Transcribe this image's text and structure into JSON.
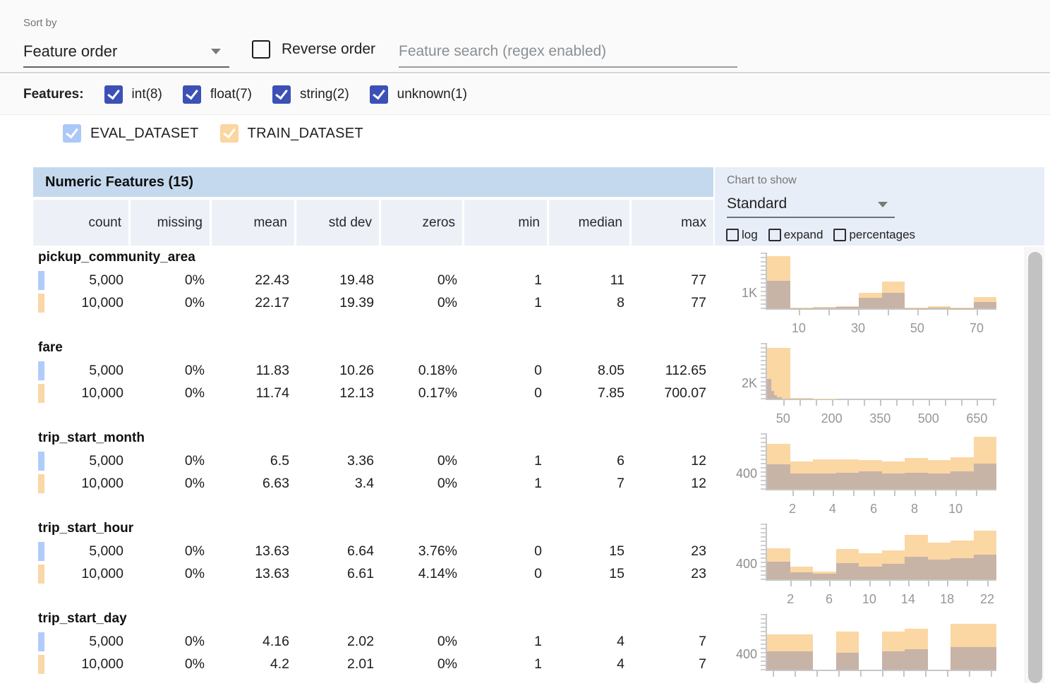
{
  "header": {
    "sort_by_label": "Sort by",
    "sort_value": "Feature order",
    "reverse_label": "Reverse order",
    "search_placeholder": "Feature search (regex enabled)"
  },
  "features_filter": {
    "label": "Features:",
    "checkbox_color": "#3d50b5",
    "items": [
      {
        "label": "int(8)",
        "checked": true
      },
      {
        "label": "float(7)",
        "checked": true
      },
      {
        "label": "string(2)",
        "checked": true
      },
      {
        "label": "unknown(1)",
        "checked": true
      }
    ]
  },
  "datasets": [
    {
      "name": "EVAL_DATASET",
      "checkbox_color": "#abc8f7",
      "chip_color": "#b0ccf8",
      "checked": true
    },
    {
      "name": "TRAIN_DATASET",
      "checkbox_color": "#fbd6a0",
      "chip_color": "#f9d7a6",
      "checked": true
    }
  ],
  "table": {
    "title": "Numeric Features (15)",
    "columns": [
      "count",
      "missing",
      "mean",
      "std dev",
      "zeros",
      "min",
      "median",
      "max"
    ],
    "features": [
      {
        "name": "pickup_community_area",
        "rows": [
          {
            "dataset": "EVAL_DATASET",
            "values": [
              "5,000",
              "0%",
              "22.43",
              "19.48",
              "0%",
              "1",
              "11",
              "77"
            ]
          },
          {
            "dataset": "TRAIN_DATASET",
            "values": [
              "10,000",
              "0%",
              "22.17",
              "19.39",
              "0%",
              "1",
              "8",
              "77"
            ]
          }
        ]
      },
      {
        "name": "fare",
        "rows": [
          {
            "dataset": "EVAL_DATASET",
            "values": [
              "5,000",
              "0%",
              "11.83",
              "10.26",
              "0.18%",
              "0",
              "8.05",
              "112.65"
            ]
          },
          {
            "dataset": "TRAIN_DATASET",
            "values": [
              "10,000",
              "0%",
              "11.74",
              "12.13",
              "0.17%",
              "0",
              "7.85",
              "700.07"
            ]
          }
        ]
      },
      {
        "name": "trip_start_month",
        "rows": [
          {
            "dataset": "EVAL_DATASET",
            "values": [
              "5,000",
              "0%",
              "6.5",
              "3.36",
              "0%",
              "1",
              "6",
              "12"
            ]
          },
          {
            "dataset": "TRAIN_DATASET",
            "values": [
              "10,000",
              "0%",
              "6.63",
              "3.4",
              "0%",
              "1",
              "7",
              "12"
            ]
          }
        ]
      },
      {
        "name": "trip_start_hour",
        "rows": [
          {
            "dataset": "EVAL_DATASET",
            "values": [
              "5,000",
              "0%",
              "13.63",
              "6.64",
              "3.76%",
              "0",
              "15",
              "23"
            ]
          },
          {
            "dataset": "TRAIN_DATASET",
            "values": [
              "10,000",
              "0%",
              "13.63",
              "6.61",
              "4.14%",
              "0",
              "15",
              "23"
            ]
          }
        ]
      },
      {
        "name": "trip_start_day",
        "rows": [
          {
            "dataset": "EVAL_DATASET",
            "values": [
              "5,000",
              "0%",
              "4.16",
              "2.02",
              "0%",
              "1",
              "4",
              "7"
            ]
          },
          {
            "dataset": "TRAIN_DATASET",
            "values": [
              "10,000",
              "0%",
              "4.2",
              "2.01",
              "0%",
              "1",
              "4",
              "7"
            ]
          }
        ]
      }
    ]
  },
  "chart_controls": {
    "label": "Chart to show",
    "selected": "Standard",
    "options": [
      "log",
      "expand",
      "percentages"
    ]
  },
  "colors": {
    "train_bar": "#fbd7a4",
    "eval_overlap": "#c8b3a7",
    "axis": "#c6c6c6",
    "axis_label": "#8d8d8d"
  },
  "chart_data": [
    {
      "type": "histogram",
      "feature": "pickup_community_area",
      "y_axis_label": "1K",
      "x_tick_positions": [
        0.138,
        0.268,
        0.397,
        0.526,
        0.655,
        0.785,
        0.914
      ],
      "x_labels": [
        {
          "pos": 0.138,
          "text": "10"
        },
        {
          "pos": 0.397,
          "text": "30"
        },
        {
          "pos": 0.655,
          "text": "50"
        },
        {
          "pos": 0.914,
          "text": "70"
        }
      ],
      "series": [
        {
          "name": "TRAIN_DATASET",
          "values": [
            0.96,
            0.013,
            0.026,
            0.04,
            0.29,
            0.49,
            0.013,
            0.04,
            0.013,
            0.21
          ]
        },
        {
          "name": "EVAL_DATASET",
          "values": [
            0.51,
            0.005,
            0.013,
            0.026,
            0.19,
            0.29,
            0.005,
            0.013,
            0.005,
            0.12
          ]
        }
      ]
    },
    {
      "type": "histogram",
      "feature": "fare",
      "y_axis_label": "2K",
      "x_tick_positions": [
        0.07,
        0.141,
        0.211,
        0.282,
        0.352,
        0.422,
        0.493,
        0.563,
        0.634,
        0.704,
        0.775,
        0.845,
        0.915,
        0.986
      ],
      "x_labels": [
        {
          "pos": 0.07,
          "text": "50"
        },
        {
          "pos": 0.282,
          "text": "200"
        },
        {
          "pos": 0.493,
          "text": "350"
        },
        {
          "pos": 0.704,
          "text": "500"
        },
        {
          "pos": 0.915,
          "text": "650"
        }
      ],
      "series": [
        {
          "name": "TRAIN_DATASET",
          "values": [
            0.94,
            0.012,
            0.005,
            0,
            0,
            0,
            0,
            0,
            0,
            0
          ]
        },
        {
          "name": "EVAL_DATASET",
          "values": [
            0,
            0,
            0,
            0,
            0,
            0,
            0,
            0,
            0,
            0
          ]
        }
      ],
      "eval_custom": [
        {
          "pos": 0.0,
          "w": 0.018,
          "h": 0.36
        },
        {
          "pos": 0.018,
          "w": 0.012,
          "h": 0.14
        },
        {
          "pos": 0.03,
          "w": 0.014,
          "h": 0.06
        },
        {
          "pos": 0.044,
          "w": 0.02,
          "h": 0.03
        }
      ]
    },
    {
      "type": "histogram",
      "feature": "trip_start_month",
      "y_axis_label": "400",
      "x_tick_positions": [
        0.111,
        0.2,
        0.286,
        0.375,
        0.465,
        0.554,
        0.643,
        0.732,
        0.822,
        0.911
      ],
      "x_labels": [
        {
          "pos": 0.111,
          "text": "2"
        },
        {
          "pos": 0.286,
          "text": "4"
        },
        {
          "pos": 0.465,
          "text": "6"
        },
        {
          "pos": 0.643,
          "text": "8"
        },
        {
          "pos": 0.822,
          "text": "10"
        }
      ],
      "series": [
        {
          "name": "TRAIN_DATASET",
          "values": [
            0.83,
            0.51,
            0.54,
            0.54,
            0.53,
            0.51,
            0.57,
            0.53,
            0.59,
            0.96
          ]
        },
        {
          "name": "EVAL_DATASET",
          "values": [
            0.45,
            0.28,
            0.29,
            0.3,
            0.32,
            0.29,
            0.3,
            0.29,
            0.32,
            0.47
          ]
        }
      ]
    },
    {
      "type": "histogram",
      "feature": "trip_start_hour",
      "y_axis_label": "400",
      "x_tick_positions": [
        0.102,
        0.187,
        0.271,
        0.36,
        0.446,
        0.531,
        0.615,
        0.7,
        0.785,
        0.872,
        0.96
      ],
      "x_labels": [
        {
          "pos": 0.102,
          "text": "2"
        },
        {
          "pos": 0.271,
          "text": "6"
        },
        {
          "pos": 0.446,
          "text": "10"
        },
        {
          "pos": 0.615,
          "text": "14"
        },
        {
          "pos": 0.785,
          "text": "18"
        },
        {
          "pos": 0.96,
          "text": "22"
        }
      ],
      "series": [
        {
          "name": "TRAIN_DATASET",
          "values": [
            0.57,
            0.23,
            0.14,
            0.56,
            0.48,
            0.53,
            0.82,
            0.67,
            0.72,
            0.89
          ]
        },
        {
          "name": "EVAL_DATASET",
          "values": [
            0.32,
            0.13,
            0.11,
            0.3,
            0.24,
            0.28,
            0.42,
            0.37,
            0.39,
            0.46
          ]
        }
      ]
    },
    {
      "type": "histogram",
      "feature": "trip_start_day",
      "y_axis_label": "400",
      "x_tick_positions": [
        0.025,
        0.12,
        0.215,
        0.31,
        0.405,
        0.5,
        0.595,
        0.69,
        0.785,
        0.88,
        0.975
      ],
      "x_labels": [],
      "series": [
        {
          "name": "TRAIN_DATASET",
          "values": [
            0.65,
            0.65,
            0,
            0.7,
            0,
            0.7,
            0.75,
            0,
            0.84,
            0.84
          ]
        },
        {
          "name": "EVAL_DATASET",
          "values": [
            0.34,
            0.34,
            0,
            0.31,
            0,
            0.34,
            0.38,
            0,
            0.42,
            0.41
          ]
        }
      ]
    }
  ]
}
